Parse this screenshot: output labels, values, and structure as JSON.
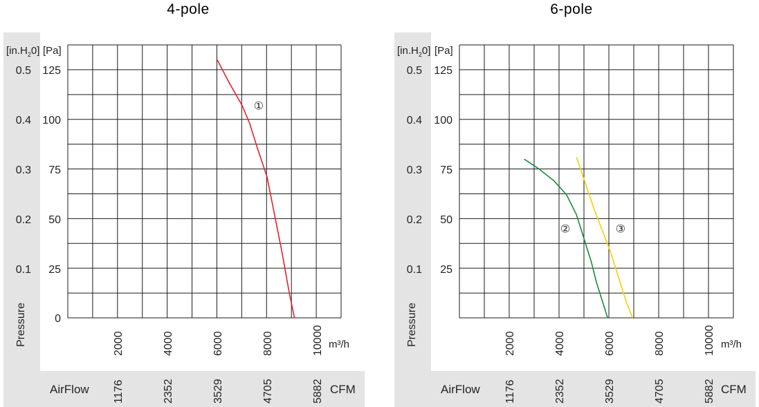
{
  "chart_data": [
    {
      "type": "line",
      "title": "4-pole",
      "xlabel": "AirFlow",
      "ylabel": "Pressure",
      "x_unit": "m³/h",
      "x_unit_alt": "CFM",
      "y_unit": "[Pa]",
      "y_unit_alt_parts": [
        "[in.H",
        "2",
        "0]"
      ],
      "xlim": [
        0,
        10500
      ],
      "ylim": [
        0,
        135
      ],
      "grid": true,
      "x_ticks": [
        "2000",
        "4000",
        "6000",
        "8000",
        "10000"
      ],
      "x_ticks_alt": [
        "1176",
        "2352",
        "3529",
        "4705",
        "5882"
      ],
      "y_ticks": [
        "0",
        "25",
        "50",
        "75",
        "100",
        "125"
      ],
      "y_ticks_alt": [
        "0.1",
        "0.2",
        "0.3",
        "0.4",
        "0.5"
      ],
      "series": [
        {
          "marker": "①",
          "color": "#e8202a",
          "x": [
            6000,
            6500,
            7000,
            7300,
            7600,
            8000,
            8300,
            8600,
            8900,
            9100
          ],
          "y": [
            130,
            118,
            107,
            98,
            86,
            71,
            52,
            33,
            12,
            0
          ]
        }
      ]
    },
    {
      "type": "line",
      "title": "6-pole",
      "xlabel": "AirFlow",
      "ylabel": "Pressure",
      "x_unit": "m³/h",
      "x_unit_alt": "CFM",
      "y_unit": "[Pa]",
      "y_unit_alt_parts": [
        "[in.H",
        "2",
        "0]"
      ],
      "xlim": [
        0,
        11000
      ],
      "ylim": [
        0,
        135
      ],
      "grid": true,
      "x_ticks": [
        "2000",
        "4000",
        "6000",
        "8000",
        "10000"
      ],
      "x_ticks_alt": [
        "1176",
        "2352",
        "3529",
        "4705",
        "5882"
      ],
      "y_ticks": [
        "25",
        "50",
        "75",
        "100",
        "125"
      ],
      "y_ticks_alt": [
        "0.1",
        "0.2",
        "0.3",
        "0.4",
        "0.5"
      ],
      "series": [
        {
          "marker": "②",
          "color": "#1a8a3c",
          "x": [
            2600,
            3200,
            3800,
            4300,
            4700,
            5000,
            5300,
            5500,
            5750,
            5950
          ],
          "y": [
            80,
            75,
            69,
            62,
            52,
            40,
            28,
            18,
            8,
            0
          ]
        },
        {
          "marker": "③",
          "color": "#f5d000",
          "x": [
            4700,
            5000,
            5400,
            5800,
            6100,
            6400,
            6700,
            6950
          ],
          "y": [
            81,
            70,
            55,
            42,
            32,
            20,
            8,
            0
          ]
        }
      ]
    }
  ]
}
